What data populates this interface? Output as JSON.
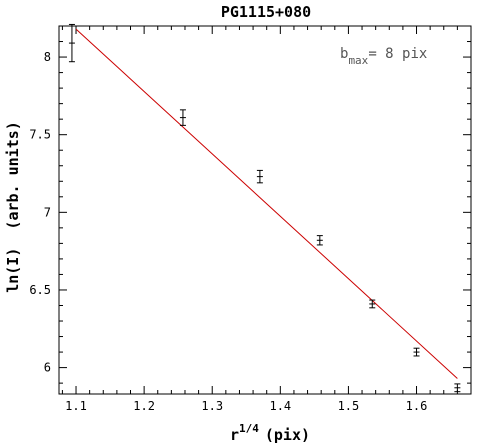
{
  "chart_data": {
    "type": "scatter",
    "title": "PG1115+080",
    "xlabel_base": "r",
    "xlabel_exp": "1/4",
    "xlabel_unit": "(pix)",
    "ylabel": "ln(I)  (arb. units)",
    "annotation": {
      "base": "b",
      "sub": "max",
      "rest": "= 8 pix"
    },
    "xlim": [
      1.075,
      1.68
    ],
    "ylim": [
      5.83,
      8.2
    ],
    "x_ticks": [
      1.1,
      1.2,
      1.3,
      1.4,
      1.5,
      1.6
    ],
    "x_tick_labels": [
      "1.1",
      "1.2",
      "1.3",
      "1.4",
      "1.5",
      "1.6"
    ],
    "y_ticks": [
      6,
      6.5,
      7,
      7.5,
      8
    ],
    "y_tick_labels": [
      "6",
      "6.5",
      "7",
      "7.5",
      "8"
    ],
    "points": [
      {
        "x": 1.094,
        "y": 8.09,
        "err": 0.12
      },
      {
        "x": 1.257,
        "y": 7.61,
        "err": 0.05
      },
      {
        "x": 1.37,
        "y": 7.23,
        "err": 0.04
      },
      {
        "x": 1.458,
        "y": 6.82,
        "err": 0.03
      },
      {
        "x": 1.535,
        "y": 6.41,
        "err": 0.025
      },
      {
        "x": 1.6,
        "y": 6.1,
        "err": 0.025
      },
      {
        "x": 1.66,
        "y": 5.87,
        "err": 0.025
      }
    ],
    "fit_line": {
      "x": [
        1.1,
        1.66
      ],
      "y": [
        8.18,
        5.93
      ]
    },
    "colors": {
      "points": "#000000",
      "fit": "#cc0000",
      "axes": "#000000"
    }
  }
}
